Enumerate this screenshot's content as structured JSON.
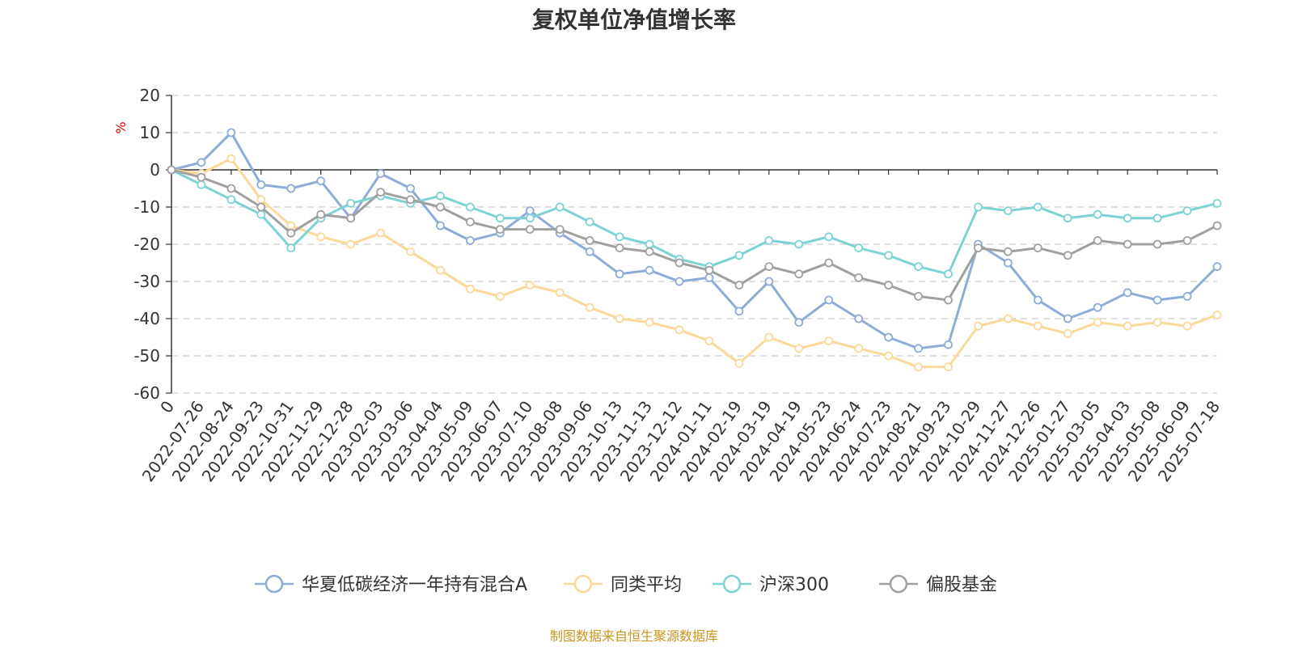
{
  "chart_data": {
    "type": "line",
    "title": "复权单位净值增长率",
    "ylabel": "%",
    "ylim": [
      -60,
      20
    ],
    "yticks": [
      20,
      10,
      0,
      -10,
      -20,
      -30,
      -40,
      -50,
      -60
    ],
    "grid": true,
    "legend_position": "bottom",
    "source": "制图数据来自恒生聚源数据库",
    "x": [
      "0",
      "2022-07-26",
      "2022-08-24",
      "2022-09-23",
      "2022-10-31",
      "2022-11-29",
      "2022-12-28",
      "2023-02-03",
      "2023-03-06",
      "2023-04-04",
      "2023-05-09",
      "2023-06-07",
      "2023-07-10",
      "2023-08-08",
      "2023-09-06",
      "2023-10-13",
      "2023-11-13",
      "2023-12-12",
      "2024-01-11",
      "2024-02-19",
      "2024-03-19",
      "2024-04-19",
      "2024-05-23",
      "2024-06-24",
      "2024-07-23",
      "2024-08-21",
      "2024-09-23",
      "2024-10-29",
      "2024-11-27",
      "2024-12-26",
      "2025-01-27",
      "2025-03-05",
      "2025-04-03",
      "2025-05-08",
      "2025-06-09",
      "2025-07-18"
    ],
    "series": [
      {
        "name": "华夏低碳经济一年持有混合A",
        "color": "#8eacd8",
        "values": [
          0,
          2,
          10,
          -4,
          -5,
          -3,
          -13,
          -1,
          -5,
          -15,
          -19,
          -17,
          -11,
          -17,
          -22,
          -28,
          -27,
          -30,
          -29,
          -38,
          -30,
          -41,
          -35,
          -40,
          -45,
          -48,
          -47,
          -20,
          -25,
          -35,
          -40,
          -37,
          -33,
          -35,
          -34,
          -26
        ]
      },
      {
        "name": "同类平均",
        "color": "#fcd89a",
        "values": [
          0,
          -1,
          3,
          -8,
          -15,
          -18,
          -20,
          -17,
          -22,
          -27,
          -32,
          -34,
          -31,
          -33,
          -37,
          -40,
          -41,
          -43,
          -46,
          -52,
          -45,
          -48,
          -46,
          -48,
          -50,
          -53,
          -53,
          -42,
          -40,
          -42,
          -44,
          -41,
          -42,
          -41,
          -42,
          -39
        ]
      },
      {
        "name": "沪深300",
        "color": "#7dd3d3",
        "values": [
          0,
          -4,
          -8,
          -12,
          -21,
          -13,
          -9,
          -7,
          -9,
          -7,
          -10,
          -13,
          -13,
          -10,
          -14,
          -18,
          -20,
          -24,
          -26,
          -23,
          -19,
          -20,
          -18,
          -21,
          -23,
          -26,
          -28,
          -10,
          -11,
          -10,
          -13,
          -12,
          -13,
          -13,
          -11,
          -9
        ]
      },
      {
        "name": "偏股基金",
        "color": "#a0a0a0",
        "values": [
          0,
          -2,
          -5,
          -10,
          -17,
          -12,
          -13,
          -6,
          -8,
          -10,
          -14,
          -16,
          -16,
          -16,
          -19,
          -21,
          -22,
          -25,
          -27,
          -31,
          -26,
          -28,
          -25,
          -29,
          -31,
          -34,
          -35,
          -21,
          -22,
          -21,
          -23,
          -19,
          -20,
          -20,
          -19,
          -15
        ]
      }
    ]
  }
}
